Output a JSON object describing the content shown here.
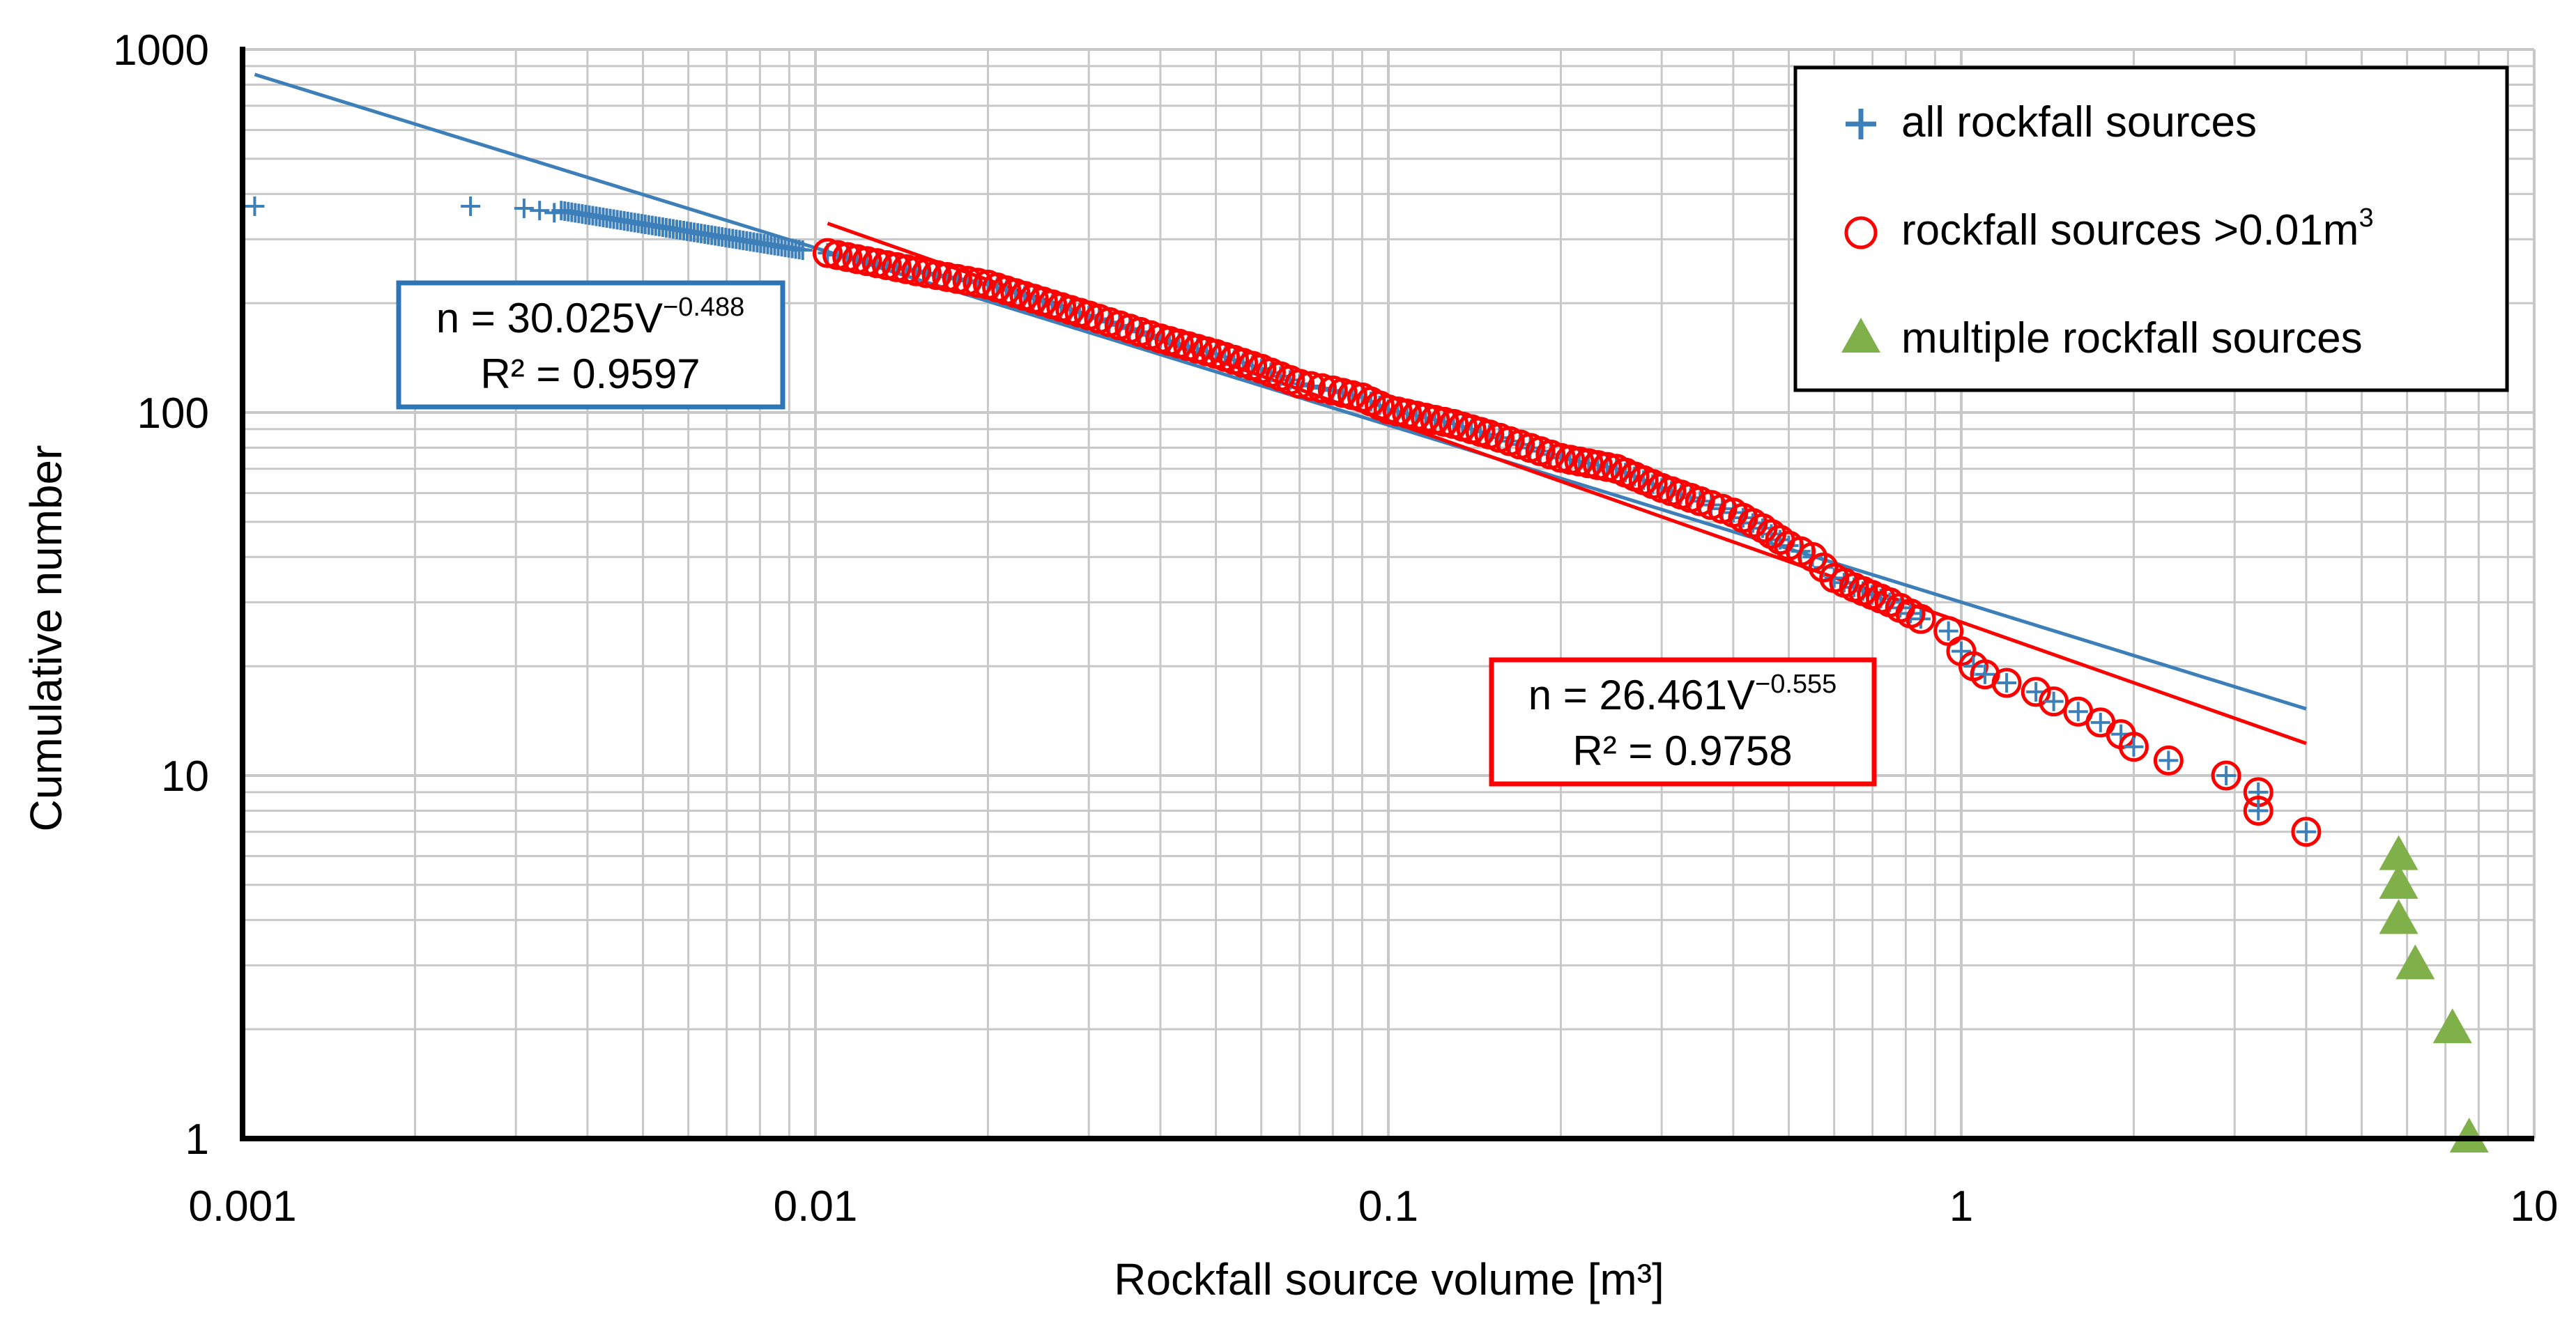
{
  "chart_data": {
    "type": "scatter",
    "xscale": "log",
    "yscale": "log",
    "xlim": [
      0.001,
      10
    ],
    "ylim": [
      1,
      1000
    ],
    "xlabel": "Rockfall source volume [m³]",
    "ylabel": "Cumulative number",
    "x_tick_labels": [
      "0.001",
      "0.01",
      "0.1",
      "1",
      "10"
    ],
    "y_tick_labels": [
      "1",
      "10",
      "100",
      "1000"
    ],
    "grid": true,
    "legend_position": "top-right",
    "colors": {
      "all": "#3d7fb8",
      "large": "#ff0000",
      "multiple": "#7fb04a"
    },
    "legend": [
      {
        "label": "all rockfall sources",
        "marker": "plus"
      },
      {
        "label": "rockfall sources >0.01m",
        "sup": "3",
        "marker": "circle"
      },
      {
        "label": "multiple rockfall sources",
        "marker": "triangle"
      }
    ],
    "series": [
      {
        "name": "all rockfall sources",
        "marker": "plus",
        "isolated_points": [
          [
            0.00105,
            370
          ],
          [
            0.0025,
            370
          ],
          [
            0.0031,
            365
          ],
          [
            0.0033,
            360
          ],
          [
            0.0035,
            355
          ]
        ],
        "rank_range": [
          280,
          360
        ],
        "volume_range": [
          0.0036,
          0.0095
        ]
      },
      {
        "name": "rockfall sources >0.01m3",
        "marker": "circle",
        "points": [
          [
            0.0105,
            275
          ],
          [
            0.015,
            245
          ],
          [
            0.02,
            225
          ],
          [
            0.03,
            185
          ],
          [
            0.04,
            160
          ],
          [
            0.05,
            145
          ],
          [
            0.06,
            132
          ],
          [
            0.07,
            120
          ],
          [
            0.08,
            115
          ],
          [
            0.09,
            110
          ],
          [
            0.1,
            102
          ],
          [
            0.13,
            93
          ],
          [
            0.15,
            87
          ],
          [
            0.2,
            75
          ],
          [
            0.25,
            70
          ],
          [
            0.3,
            62
          ],
          [
            0.35,
            57
          ],
          [
            0.4,
            53
          ],
          [
            0.45,
            48
          ],
          [
            0.5,
            43
          ],
          [
            0.55,
            40
          ],
          [
            0.6,
            35
          ],
          [
            0.65,
            33
          ],
          [
            0.75,
            30
          ],
          [
            0.85,
            27
          ],
          [
            0.95,
            25
          ],
          [
            1.0,
            22
          ],
          [
            1.05,
            20
          ],
          [
            1.1,
            19
          ],
          [
            1.2,
            18
          ],
          [
            1.35,
            17
          ],
          [
            1.45,
            16
          ],
          [
            1.6,
            15
          ],
          [
            1.75,
            14
          ],
          [
            1.9,
            13
          ],
          [
            2.0,
            12
          ],
          [
            2.3,
            11
          ],
          [
            2.9,
            10
          ],
          [
            3.3,
            9
          ],
          [
            3.3,
            8
          ],
          [
            4.0,
            7
          ]
        ]
      },
      {
        "name": "multiple rockfall sources",
        "marker": "triangle",
        "points": [
          [
            5.8,
            6
          ],
          [
            5.8,
            5
          ],
          [
            5.8,
            4
          ],
          [
            6.2,
            3
          ],
          [
            7.2,
            2
          ],
          [
            7.7,
            1
          ]
        ]
      }
    ],
    "fits": [
      {
        "name": "fit all rockfall sources",
        "coefficient": 30.025,
        "exponent": -0.488,
        "x_range": [
          0.00105,
          4.0
        ],
        "label_prefix": "n = 30.025V",
        "label_exp": "−0.488",
        "r2_label": "R² = 0.9597"
      },
      {
        "name": "fit rockfall sources >0.01m3",
        "coefficient": 26.461,
        "exponent": -0.555,
        "x_range": [
          0.0105,
          4.0
        ],
        "label_prefix": "n = 26.461V",
        "label_exp": "−0.555",
        "r2_label": "R² = 0.9758"
      }
    ]
  }
}
